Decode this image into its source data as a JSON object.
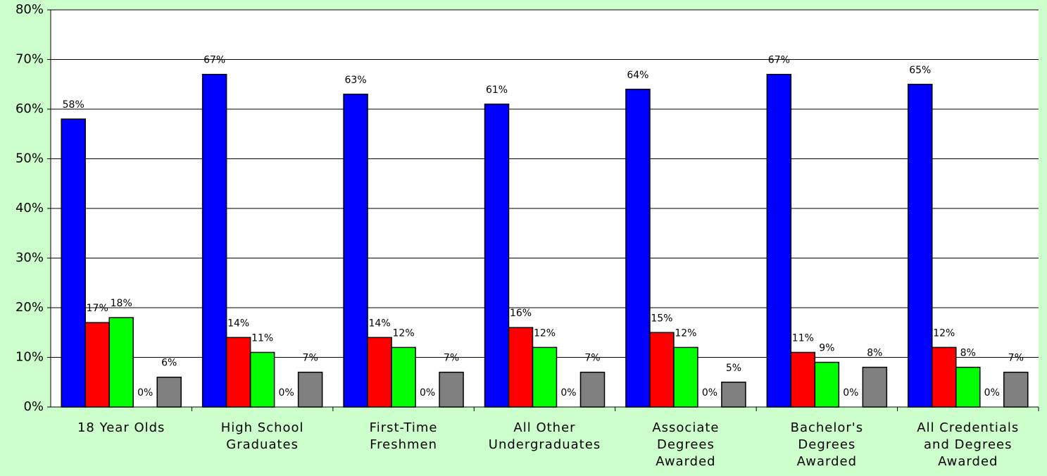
{
  "chart_data": {
    "type": "bar",
    "categories": [
      "18 Year Olds",
      "High School Graduates",
      "First-Time Freshmen",
      "All Other Undergraduates",
      "Associate Degrees Awarded",
      "Bachelor's Degrees Awarded",
      "All Credentials and Degrees Awarded"
    ],
    "series": [
      {
        "color": "#0000ff",
        "values": [
          58,
          67,
          63,
          61,
          64,
          67,
          65
        ],
        "value_labels": [
          "58%",
          "67%",
          "63%",
          "61%",
          "64%",
          "67%",
          "65%"
        ]
      },
      {
        "color": "#ff0000",
        "values": [
          17,
          14,
          14,
          16,
          15,
          11,
          12
        ],
        "value_labels": [
          "17%",
          "14%",
          "14%",
          "16%",
          "15%",
          "11%",
          "12%"
        ]
      },
      {
        "color": "#00ff00",
        "values": [
          18,
          11,
          12,
          12,
          12,
          9,
          8
        ],
        "value_labels": [
          "18%",
          "11%",
          "12%",
          "12%",
          "12%",
          "9%",
          "8%"
        ]
      },
      {
        "color": "#000000",
        "values": [
          0,
          0,
          0,
          0,
          0,
          0,
          0
        ],
        "value_labels": [
          "0%",
          "0%",
          "0%",
          "0%",
          "0%",
          "0%",
          "0%"
        ]
      },
      {
        "color": "#808080",
        "values": [
          6,
          7,
          7,
          7,
          5,
          8,
          7
        ],
        "value_labels": [
          "6%",
          "7%",
          "7%",
          "7%",
          "5%",
          "8%",
          "7%"
        ]
      }
    ],
    "ylim": [
      0,
      80
    ],
    "yticks": [
      {
        "value": 0,
        "label": "0%"
      },
      {
        "value": 10,
        "label": "10%"
      },
      {
        "value": 20,
        "label": "20%"
      },
      {
        "value": 30,
        "label": "30%"
      },
      {
        "value": 40,
        "label": "40%"
      },
      {
        "value": 50,
        "label": "50%"
      },
      {
        "value": 60,
        "label": "60%"
      },
      {
        "value": 70,
        "label": "70%"
      },
      {
        "value": 80,
        "label": "80%"
      }
    ],
    "grid": true
  }
}
